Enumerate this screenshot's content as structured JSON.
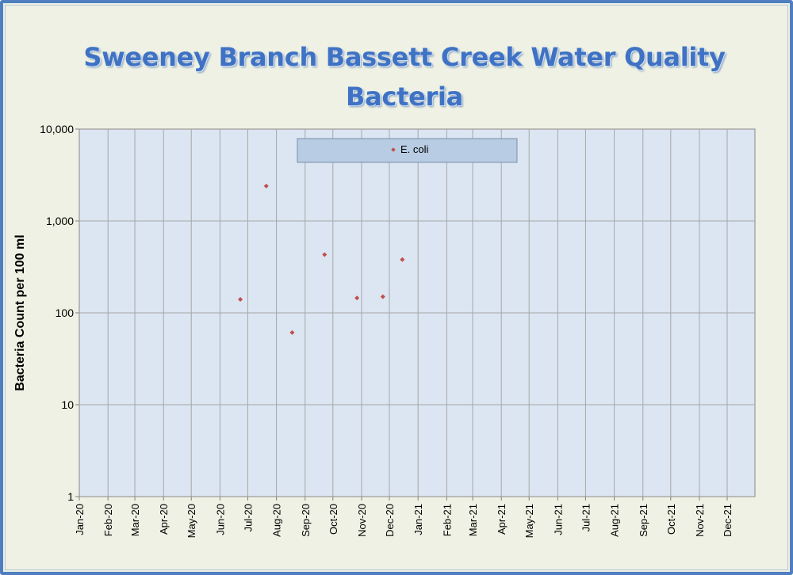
{
  "chart_data": {
    "type": "scatter",
    "title": "Sweeney Branch Bassett Creek Water Quality",
    "subtitle": "Bacteria",
    "xlabel": "",
    "ylabel": "Bacteria Count per 100 ml",
    "x_ticks": [
      "Jan-20",
      "Feb-20",
      "Mar-20",
      "Apr-20",
      "May-20",
      "Jun-20",
      "Jul-20",
      "Aug-20",
      "Sep-20",
      "Oct-20",
      "Nov-20",
      "Dec-20",
      "Jan-21",
      "Feb-21",
      "Mar-21",
      "Apr-21",
      "May-21",
      "Jun-21",
      "Jul-21",
      "Aug-21",
      "Sep-21",
      "Oct-21",
      "Nov-21",
      "Dec-21"
    ],
    "y_ticks": [
      "1",
      "10",
      "100",
      "1,000",
      "10,000"
    ],
    "y_scale": "log",
    "ylim": [
      1,
      10000
    ],
    "xlim": [
      "2020-01-01",
      "2021-12-31"
    ],
    "grid": true,
    "legend_position": "top-center",
    "series": [
      {
        "name": "E. coli",
        "color": "#c0504d",
        "marker": "diamond",
        "points": [
          {
            "x": "2020-06-23",
            "y": 140
          },
          {
            "x": "2020-07-21",
            "y": 2400
          },
          {
            "x": "2020-08-18",
            "y": 61
          },
          {
            "x": "2020-09-22",
            "y": 430
          },
          {
            "x": "2020-10-27",
            "y": 145
          },
          {
            "x": "2020-11-24",
            "y": 150
          },
          {
            "x": "2020-12-15",
            "y": 380
          }
        ]
      }
    ]
  }
}
